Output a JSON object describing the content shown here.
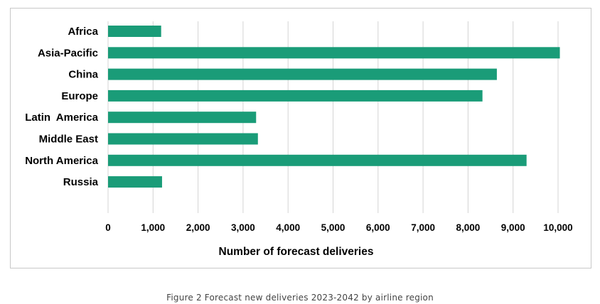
{
  "caption": "Figure 2 Forecast new deliveries 2023-2042 by airline region",
  "colors": {
    "bar": "#1a9c78",
    "grid": "#d4d4d4",
    "frame": "#c8c8c8"
  },
  "chart_data": {
    "type": "bar",
    "orientation": "horizontal",
    "categories": [
      "Africa",
      "Asia-Pacific",
      "China",
      "Europe",
      "Latin  America",
      "Middle East",
      "North America",
      "Russia"
    ],
    "values": [
      1180,
      10040,
      8640,
      8320,
      3290,
      3330,
      9300,
      1200
    ],
    "xlabel": "Number of forecast deliveries",
    "ylabel": "",
    "xlim": [
      0,
      10000
    ],
    "xticks": [
      0,
      1000,
      2000,
      3000,
      4000,
      5000,
      6000,
      7000,
      8000,
      9000,
      10000
    ],
    "xtick_labels": [
      "0",
      "1,000",
      "2,000",
      "3,000",
      "4,000",
      "5,000",
      "6,000",
      "7,000",
      "8,000",
      "9,000",
      "10,000"
    ],
    "grid": "vertical",
    "legend": "none"
  }
}
